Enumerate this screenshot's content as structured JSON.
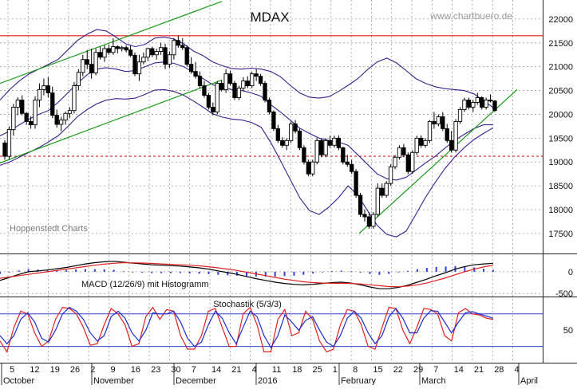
{
  "chart_data": [
    {
      "type": "candlestick",
      "title": "MDAX",
      "watermark": "www.chartbuero.de",
      "source_label": "Hoppenstedt Charts",
      "y_ticks": [
        17500,
        18000,
        18500,
        19000,
        19500,
        20000,
        20500,
        21000,
        21500,
        22000
      ],
      "ylim": [
        17080,
        22400
      ],
      "resistance_line": 21650,
      "support_line": 19120,
      "colors": {
        "candles": "#000000",
        "bollinger": "#3c1e8c",
        "trend_channel": "#1a9a1a",
        "resistance": "#e01818",
        "support": "#d02020"
      },
      "candles": [
        [
          19400,
          19460,
          19050,
          19120
        ],
        [
          19120,
          19750,
          19050,
          19680
        ],
        [
          19680,
          20220,
          19550,
          20150
        ],
        [
          20150,
          20360,
          19980,
          20300
        ],
        [
          20300,
          20400,
          19980,
          20020
        ],
        [
          20020,
          20050,
          19780,
          19850
        ],
        [
          19850,
          19960,
          19700,
          19780
        ],
        [
          19780,
          20380,
          19700,
          20300
        ],
        [
          20300,
          20650,
          20150,
          20520
        ],
        [
          20520,
          20750,
          20400,
          20600
        ],
        [
          20600,
          20780,
          20350,
          20450
        ],
        [
          20450,
          20580,
          19920,
          19980
        ],
        [
          19980,
          20100,
          19720,
          19790
        ],
        [
          19790,
          19950,
          19650,
          19880
        ],
        [
          19880,
          20060,
          19780,
          20020
        ],
        [
          20020,
          20150,
          19920,
          20080
        ],
        [
          20080,
          20680,
          20020,
          20600
        ],
        [
          20600,
          20950,
          20500,
          20880
        ],
        [
          20880,
          21250,
          20800,
          21150
        ],
        [
          21150,
          21350,
          20950,
          21050
        ],
        [
          21050,
          21380,
          20750,
          20870
        ],
        [
          20870,
          21380,
          20820,
          21300
        ],
        [
          21300,
          21420,
          21150,
          21200
        ],
        [
          21200,
          21450,
          21100,
          21380
        ],
        [
          21380,
          21460,
          21250,
          21300
        ],
        [
          21300,
          21600,
          21250,
          21420
        ],
        [
          21420,
          21450,
          21280,
          21380
        ],
        [
          21380,
          21440,
          21320,
          21400
        ],
        [
          21400,
          21450,
          21300,
          21350
        ],
        [
          21350,
          21450,
          21200,
          21240
        ],
        [
          21240,
          21300,
          20800,
          20850
        ],
        [
          20850,
          21250,
          20700,
          21100
        ],
        [
          21100,
          21300,
          21050,
          21200
        ],
        [
          21200,
          21400,
          21120,
          21380
        ],
        [
          21380,
          21420,
          21200,
          21250
        ],
        [
          21250,
          21380,
          21150,
          21320
        ],
        [
          21320,
          21500,
          21250,
          21400
        ],
        [
          21400,
          21480,
          20950,
          21050
        ],
        [
          21050,
          21320,
          20980,
          21250
        ],
        [
          21250,
          21600,
          21150,
          21550
        ],
        [
          21550,
          21650,
          21400,
          21450
        ],
        [
          21450,
          21600,
          21350,
          21400
        ],
        [
          21400,
          21450,
          21000,
          21050
        ],
        [
          21050,
          21200,
          20850,
          20900
        ],
        [
          20900,
          21100,
          20750,
          20800
        ],
        [
          20800,
          20900,
          20550,
          20600
        ],
        [
          20600,
          20700,
          20350,
          20400
        ],
        [
          20400,
          20450,
          20100,
          20150
        ],
        [
          20150,
          20250,
          19980,
          20050
        ],
        [
          20050,
          20700,
          20000,
          20650
        ],
        [
          20650,
          20720,
          20480,
          20520
        ],
        [
          20520,
          20950,
          20450,
          20850
        ],
        [
          20850,
          20920,
          20600,
          20650
        ],
        [
          20650,
          20700,
          20300,
          20350
        ],
        [
          20350,
          20600,
          20300,
          20550
        ],
        [
          20550,
          20780,
          20500,
          20700
        ],
        [
          20700,
          20800,
          20550,
          20600
        ],
        [
          20600,
          20900,
          20550,
          20850
        ],
        [
          20850,
          20950,
          20700,
          20800
        ],
        [
          20800,
          20850,
          20600,
          20650
        ],
        [
          20650,
          20700,
          20250,
          20300
        ],
        [
          20300,
          20350,
          20000,
          20050
        ],
        [
          20050,
          20080,
          19650,
          19700
        ],
        [
          19700,
          19780,
          19400,
          19450
        ],
        [
          19450,
          19520,
          19300,
          19350
        ],
        [
          19350,
          19500,
          19250,
          19450
        ],
        [
          19450,
          19850,
          19400,
          19800
        ],
        [
          19800,
          19880,
          19600,
          19650
        ],
        [
          19650,
          19700,
          19250,
          19300
        ],
        [
          19300,
          19350,
          18950,
          19000
        ],
        [
          19000,
          19050,
          18700,
          18750
        ],
        [
          18750,
          19050,
          18700,
          19000
        ],
        [
          19000,
          19500,
          18950,
          19450
        ],
        [
          19450,
          19500,
          19100,
          19150
        ],
        [
          19150,
          19500,
          19100,
          19450
        ],
        [
          19450,
          19550,
          19300,
          19350
        ],
        [
          19350,
          19550,
          19300,
          19500
        ],
        [
          19500,
          19560,
          19250,
          19300
        ],
        [
          19300,
          19320,
          18950,
          19000
        ],
        [
          19000,
          19150,
          18900,
          18950
        ],
        [
          18950,
          19050,
          18750,
          18800
        ],
        [
          18800,
          18850,
          18250,
          18300
        ],
        [
          18300,
          18350,
          17850,
          17900
        ],
        [
          17900,
          18000,
          17750,
          17850
        ],
        [
          17850,
          17950,
          17600,
          17650
        ],
        [
          17650,
          17950,
          17600,
          17900
        ],
        [
          17900,
          18550,
          17850,
          18450
        ],
        [
          18450,
          18550,
          18250,
          18300
        ],
        [
          18300,
          18600,
          18250,
          18550
        ],
        [
          18550,
          18950,
          18500,
          18900
        ],
        [
          18900,
          19150,
          18850,
          19100
        ],
        [
          19100,
          19350,
          19050,
          19300
        ],
        [
          19300,
          19380,
          19100,
          19150
        ],
        [
          19150,
          19200,
          18750,
          18800
        ],
        [
          18800,
          19250,
          18750,
          19200
        ],
        [
          19200,
          19550,
          19150,
          19500
        ],
        [
          19500,
          19560,
          19300,
          19350
        ],
        [
          19350,
          19500,
          19300,
          19450
        ],
        [
          19450,
          19880,
          19400,
          19850
        ],
        [
          19850,
          20050,
          19700,
          19800
        ],
        [
          19800,
          20000,
          19750,
          19950
        ],
        [
          19950,
          20050,
          19650,
          19700
        ],
        [
          19700,
          19800,
          19400,
          19450
        ],
        [
          19450,
          19650,
          19200,
          19250
        ],
        [
          19250,
          19900,
          19200,
          19850
        ],
        [
          19850,
          20150,
          19800,
          20100
        ],
        [
          20100,
          20350,
          20050,
          20300
        ],
        [
          20300,
          20350,
          20100,
          20150
        ],
        [
          20150,
          20300,
          20050,
          20250
        ],
        [
          20250,
          20450,
          20200,
          20350
        ],
        [
          20350,
          20380,
          20100,
          20150
        ],
        [
          20150,
          20350,
          20100,
          20300
        ],
        [
          20300,
          20420,
          20250,
          20280
        ],
        [
          20280,
          20300,
          20050,
          20080
        ]
      ],
      "bollinger_upper": [
        20300,
        20520,
        20700,
        20850,
        20950,
        21050,
        21150,
        21350,
        21550,
        21680,
        21780,
        21750,
        21620,
        21480,
        21420,
        21470,
        21600,
        21620,
        21580,
        21480,
        21330,
        21230,
        21100,
        21020,
        20960,
        20950,
        20970,
        20950,
        20900,
        20790,
        20610,
        20450,
        20360,
        20340,
        20370,
        20480,
        20610,
        20750,
        20940,
        21100,
        21180,
        21080,
        20920,
        20750,
        20650,
        20580,
        20540,
        20520,
        20500,
        20430,
        20290,
        20140
      ],
      "bollinger_middle": [
        19550,
        19650,
        19780,
        19900,
        20000,
        20080,
        20250,
        20450,
        20650,
        20830,
        20950,
        20980,
        20950,
        20900,
        20920,
        21000,
        21080,
        21100,
        21070,
        21000,
        20880,
        20750,
        20620,
        20560,
        20520,
        20500,
        20450,
        20380,
        20200,
        20050,
        19880,
        19710,
        19600,
        19500,
        19450,
        19420,
        19350,
        19150,
        18950,
        18750,
        18650,
        18620,
        18680,
        18830,
        18980,
        19120,
        19290,
        19450,
        19580,
        19700,
        19780,
        19780
      ],
      "bollinger_lower": [
        18930,
        19000,
        19100,
        19200,
        19300,
        19420,
        19550,
        19740,
        19950,
        20100,
        20220,
        20300,
        20330,
        20320,
        20340,
        20420,
        20510,
        20520,
        20480,
        20400,
        20280,
        20150,
        20010,
        19940,
        19900,
        19880,
        19830,
        19730,
        19410,
        19030,
        18640,
        18250,
        17980,
        17900,
        18050,
        18250,
        18500,
        18300,
        17980,
        17670,
        17480,
        17430,
        17550,
        17900,
        18260,
        18570,
        18860,
        19100,
        19300,
        19470,
        19600,
        19720
      ],
      "trend_channel": {
        "upper": [
          [
            20650,
            21000
          ],
          [
            22370,
            22150
          ]
        ],
        "lower": [
          [
            18980,
            19060
          ],
          [
            20720,
            20880
          ]
        ]
      },
      "trend_line": [
        [
          17500,
          17450
        ],
        [
          20520,
          20480
        ]
      ]
    },
    {
      "type": "line",
      "title": "MACD (12/26/9) mit Histogramm",
      "y_ticks": [
        0,
        -500
      ],
      "ylim": [
        -570,
        420
      ],
      "series": [
        {
          "name": "MACD",
          "color": "#000000",
          "values": [
            -200,
            -130,
            -60,
            0,
            20,
            40,
            70,
            100,
            140,
            180,
            210,
            230,
            240,
            220,
            200,
            180,
            160,
            150,
            140,
            130,
            110,
            90,
            60,
            20,
            -20,
            -60,
            -110,
            -160,
            -200,
            -240,
            -270,
            -290,
            -300,
            -290,
            -270,
            -250,
            -240,
            -260,
            -300,
            -350,
            -390,
            -390,
            -360,
            -310,
            -240,
            -170,
            -90,
            -20,
            60,
            120,
            160,
            180,
            195
          ]
        },
        {
          "name": "Signal",
          "color": "#e02020",
          "values": [
            -150,
            -120,
            -90,
            -60,
            -30,
            0,
            30,
            60,
            90,
            120,
            150,
            175,
            195,
            210,
            205,
            200,
            190,
            180,
            170,
            160,
            150,
            135,
            115,
            90,
            60,
            30,
            -10,
            -50,
            -90,
            -130,
            -170,
            -200,
            -230,
            -250,
            -260,
            -265,
            -265,
            -270,
            -280,
            -300,
            -320,
            -340,
            -345,
            -330,
            -300,
            -260,
            -200,
            -140,
            -70,
            0,
            60,
            110,
            150
          ]
        }
      ],
      "histogram": [
        -50,
        -10,
        30,
        60,
        50,
        40,
        40,
        40,
        50,
        60,
        60,
        55,
        45,
        10,
        -5,
        -20,
        -30,
        -30,
        -30,
        -30,
        -40,
        -45,
        -55,
        -70,
        -80,
        -90,
        -100,
        -110,
        -110,
        -110,
        -100,
        -90,
        -70,
        -40,
        -10,
        15,
        25,
        10,
        -20,
        -50,
        -70,
        -50,
        -15,
        20,
        60,
        90,
        110,
        120,
        130,
        120,
        100,
        70,
        45
      ]
    },
    {
      "type": "line",
      "title": "Stochastik (5/3/3)",
      "y_ticks": [
        50
      ],
      "ylim": [
        -10,
        112
      ],
      "reference_lines": [
        80,
        20
      ],
      "series": [
        {
          "name": "%K",
          "color": "#e02020",
          "values": [
            30,
            10,
            55,
            85,
            80,
            45,
            20,
            30,
            70,
            92,
            90,
            80,
            55,
            22,
            25,
            60,
            90,
            80,
            60,
            20,
            25,
            75,
            92,
            70,
            88,
            85,
            40,
            15,
            15,
            40,
            85,
            90,
            55,
            20,
            20,
            80,
            92,
            60,
            10,
            10,
            70,
            88,
            40,
            45,
            85,
            70,
            30,
            10,
            15,
            60,
            88,
            85,
            60,
            20,
            15,
            55,
            92,
            90,
            50,
            25,
            55,
            90,
            88,
            80,
            40,
            30,
            82,
            90,
            80,
            78,
            72,
            70
          ]
        },
        {
          "name": "%D",
          "color": "#1c2ccc",
          "values": [
            40,
            25,
            40,
            70,
            82,
            65,
            35,
            28,
            50,
            80,
            92,
            85,
            70,
            45,
            30,
            40,
            75,
            85,
            72,
            45,
            30,
            50,
            82,
            80,
            80,
            85,
            65,
            35,
            20,
            28,
            60,
            85,
            72,
            45,
            25,
            55,
            85,
            75,
            40,
            18,
            40,
            78,
            65,
            50,
            68,
            75,
            50,
            28,
            20,
            40,
            72,
            85,
            72,
            45,
            25,
            40,
            75,
            90,
            72,
            45,
            45,
            72,
            86,
            85,
            65,
            45,
            65,
            82,
            84,
            80,
            76,
            72
          ]
        }
      ]
    }
  ],
  "x_axis": {
    "day_labels": [
      "5",
      "12",
      "19",
      "26",
      "2",
      "9",
      "16",
      "23",
      "30",
      "7",
      "14",
      "21",
      "4",
      "11",
      "18",
      "25",
      "1",
      "8",
      "15",
      "22",
      "29",
      "7",
      "14",
      "21",
      "28",
      "4"
    ],
    "month_labels": [
      "October",
      "November",
      "December",
      "2016",
      "February",
      "March",
      "April"
    ]
  }
}
